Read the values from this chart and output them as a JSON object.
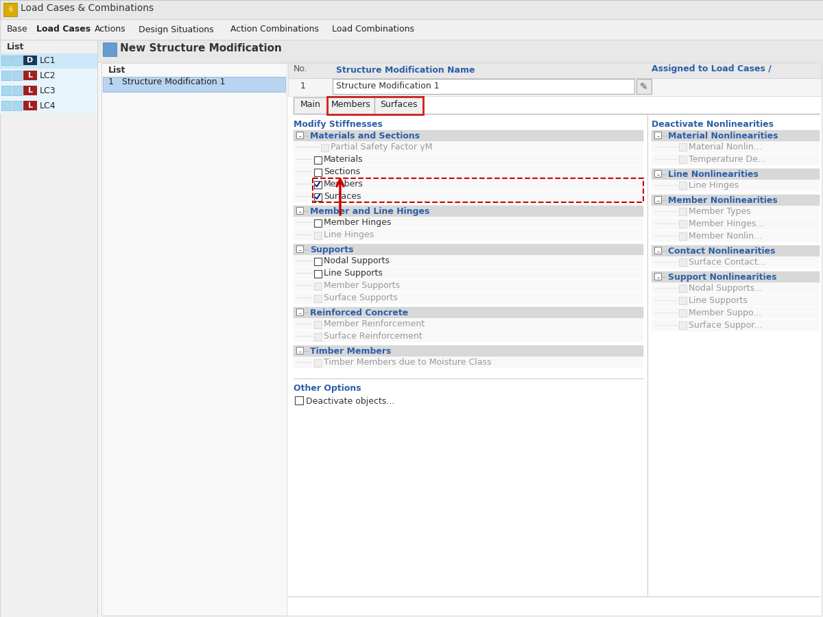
{
  "title_bar": "Load Cases & Combinations",
  "menu_items": [
    "Base",
    "Load Cases",
    "Actions",
    "Design Situations",
    "Action Combinations",
    "Load Combinations"
  ],
  "dialog_title": "New Structure Modification",
  "left_panel_title": "List",
  "list_item": "1   Structure Modification 1",
  "no_label": "No.",
  "no_value": "1",
  "smn_label": "Structure Modification Name",
  "smn_value": "Structure Modification 1",
  "assigned_label": "Assigned to Load Cases /",
  "tabs": [
    "Main",
    "Members",
    "Surfaces"
  ],
  "active_tab": "Members",
  "tab_highlight_tabs": [
    "Members",
    "Surfaces"
  ],
  "modify_stiffnesses_label": "Modify Stiffnesses",
  "left_tree": {
    "sections": [
      {
        "header": "Materials and Sections",
        "items": [
          {
            "label": "Partial Safety Factor γM",
            "checked": null,
            "enabled": false
          },
          {
            "label": "Materials",
            "checked": false,
            "enabled": true
          },
          {
            "label": "Sections",
            "checked": false,
            "enabled": true
          },
          {
            "label": "Members",
            "checked": true,
            "enabled": true,
            "highlighted": true
          },
          {
            "label": "Surfaces",
            "checked": true,
            "enabled": true,
            "highlighted": true
          }
        ]
      },
      {
        "header": "Member and Line Hinges",
        "items": [
          {
            "label": "Member Hinges",
            "checked": false,
            "enabled": true
          },
          {
            "label": "Line Hinges",
            "checked": null,
            "enabled": false
          }
        ]
      },
      {
        "header": "Supports",
        "items": [
          {
            "label": "Nodal Supports",
            "checked": false,
            "enabled": true
          },
          {
            "label": "Line Supports",
            "checked": false,
            "enabled": true
          },
          {
            "label": "Member Supports",
            "checked": null,
            "enabled": false
          },
          {
            "label": "Surface Supports",
            "checked": null,
            "enabled": false
          }
        ]
      },
      {
        "header": "Reinforced Concrete",
        "items": [
          {
            "label": "Member Reinforcement",
            "checked": null,
            "enabled": false
          },
          {
            "label": "Surface Reinforcement",
            "checked": null,
            "enabled": false
          }
        ]
      },
      {
        "header": "Timber Members",
        "items": [
          {
            "label": "Timber Members due to Moisture Class",
            "checked": null,
            "enabled": false
          }
        ]
      }
    ]
  },
  "other_options_label": "Other Options",
  "deactivate_label": "Deactivate objects...",
  "right_panel_title": "Deactivate Nonlinearities",
  "right_tree": {
    "sections": [
      {
        "header": "Material Nonlinearities",
        "items": [
          {
            "label": "Material Nonlin...",
            "checked": null,
            "enabled": false
          },
          {
            "label": "Temperature De...",
            "checked": null,
            "enabled": false
          }
        ]
      },
      {
        "header": "Line Nonlinearities",
        "items": [
          {
            "label": "Line Hinges",
            "checked": null,
            "enabled": false
          }
        ]
      },
      {
        "header": "Member Nonlinearities",
        "items": [
          {
            "label": "Member Types",
            "checked": null,
            "enabled": false
          },
          {
            "label": "Member Hinges...",
            "checked": null,
            "enabled": false
          },
          {
            "label": "Member Nonlin...",
            "checked": null,
            "enabled": false
          }
        ]
      },
      {
        "header": "Contact Nonlinearities",
        "items": [
          {
            "label": "Surface Contact...",
            "checked": null,
            "enabled": false
          }
        ]
      },
      {
        "header": "Support Nonlinearities",
        "items": [
          {
            "label": "Nodal Supports...",
            "checked": null,
            "enabled": false
          },
          {
            "label": "Line Supports",
            "checked": null,
            "enabled": false
          },
          {
            "label": "Member Suppo...",
            "checked": null,
            "enabled": false
          },
          {
            "label": "Surface Suppor...",
            "checked": null,
            "enabled": false
          }
        ]
      }
    ]
  },
  "lc_list": [
    {
      "label": "LC1",
      "type": "D",
      "type_color": "#1a3a5c"
    },
    {
      "label": "LC2",
      "type": "L",
      "type_color": "#a02020"
    },
    {
      "label": "LC3",
      "type": "L",
      "type_color": "#a02020"
    },
    {
      "label": "LC4",
      "type": "L",
      "type_color": "#a02020"
    }
  ],
  "bg_color": "#d4d4d4",
  "panel_bg": "#f5f5f5",
  "header_bg": "#e0e0e0",
  "dialog_bg": "#ffffff",
  "tab_active_color": "#ffffff",
  "tab_inactive_color": "#e8e8e8",
  "section_header_bg": "#d8d8d8",
  "tree_item_bg": "#f0f0f0",
  "highlight_box_color": "#cc0000",
  "arrow_color": "#cc0000",
  "blue_text_color": "#2c5fa8",
  "dark_blue_text": "#1a3a7a",
  "red_box_color": "#cc2222",
  "dashed_box_color": "#cc0000"
}
